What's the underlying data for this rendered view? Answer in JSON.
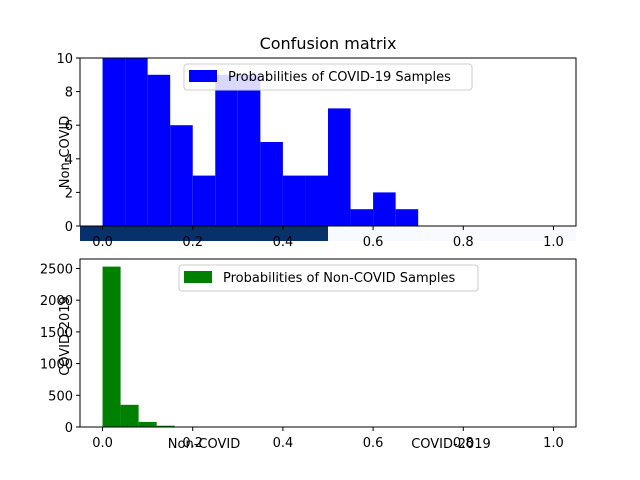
{
  "figure_title": "Confusion matrix",
  "overlay": {
    "row_label": "Non-COVID",
    "col_label_left": "Non-COVID",
    "col_label_right": "COVID-2019",
    "row_label_bottom": "COVID-2019",
    "cell_color": "#08306b",
    "light_color": "#f7fbff"
  },
  "chart_data": [
    {
      "type": "bar",
      "subtype": "histogram",
      "legend": "Probabilities of COVID-19 Samples",
      "color": "#0000ff",
      "bin_width": 0.05,
      "bins": [
        {
          "x0": 0.0,
          "count": 10
        },
        {
          "x0": 0.05,
          "count": 10
        },
        {
          "x0": 0.1,
          "count": 9
        },
        {
          "x0": 0.15,
          "count": 6
        },
        {
          "x0": 0.2,
          "count": 3
        },
        {
          "x0": 0.25,
          "count": 9
        },
        {
          "x0": 0.3,
          "count": 9
        },
        {
          "x0": 0.35,
          "count": 5
        },
        {
          "x0": 0.4,
          "count": 3
        },
        {
          "x0": 0.45,
          "count": 3
        },
        {
          "x0": 0.5,
          "count": 7
        },
        {
          "x0": 0.55,
          "count": 1
        },
        {
          "x0": 0.6,
          "count": 2
        },
        {
          "x0": 0.65,
          "count": 1
        }
      ],
      "xlim": [
        -0.05,
        1.05
      ],
      "ylim": [
        0,
        10
      ],
      "xticks": [
        "0.0",
        "0.2",
        "0.4",
        "0.6",
        "0.8",
        "1.0"
      ],
      "yticks": [
        "0",
        "2",
        "4",
        "6",
        "8",
        "10"
      ]
    },
    {
      "type": "bar",
      "subtype": "histogram",
      "legend": "Probabilities of Non-COVID Samples",
      "color": "#008000",
      "bin_width": 0.04,
      "bins": [
        {
          "x0": 0.0,
          "count": 2530
        },
        {
          "x0": 0.04,
          "count": 350
        },
        {
          "x0": 0.08,
          "count": 80
        },
        {
          "x0": 0.12,
          "count": 20
        },
        {
          "x0": 0.16,
          "count": 5
        }
      ],
      "xlim": [
        -0.05,
        1.05
      ],
      "ylim": [
        0,
        2650
      ],
      "xticks": [
        "0.0",
        "0.2",
        "0.4",
        "0.6",
        "0.8",
        "1.0"
      ],
      "yticks": [
        "0",
        "500",
        "1000",
        "1500",
        "2000",
        "2500"
      ]
    }
  ]
}
